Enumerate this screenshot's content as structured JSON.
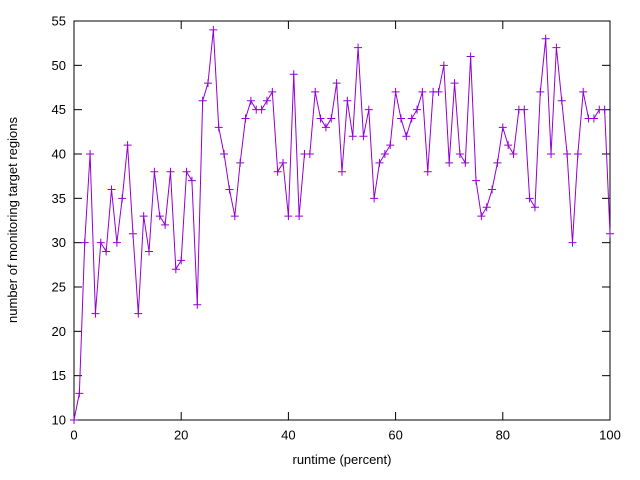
{
  "chart_data": {
    "type": "line",
    "title": "",
    "xlabel": "runtime (percent)",
    "ylabel": "number of monitoring target regions",
    "x_ticks": [
      0,
      20,
      40,
      60,
      80,
      100
    ],
    "y_ticks": [
      10,
      15,
      20,
      25,
      30,
      35,
      40,
      45,
      50,
      55
    ],
    "xlim": [
      0,
      100
    ],
    "ylim": [
      10,
      55
    ],
    "x_start": 0,
    "x_step": 1,
    "grid": "off",
    "legend": "none",
    "marker": "plus",
    "line_color": "#9400d3",
    "border_color": "#000000",
    "series": [
      {
        "name": "monitoring target regions",
        "values": [
          10,
          13,
          30,
          40,
          22,
          30,
          29,
          36,
          30,
          35,
          41,
          31,
          22,
          33,
          29,
          38,
          33,
          32,
          38,
          27,
          28,
          38,
          37,
          23,
          46,
          48,
          54,
          43,
          40,
          36,
          33,
          39,
          44,
          46,
          45,
          45,
          46,
          47,
          38,
          39,
          33,
          49,
          33,
          40,
          40,
          47,
          44,
          43,
          44,
          48,
          38,
          46,
          42,
          52,
          42,
          45,
          35,
          39,
          40,
          41,
          47,
          44,
          42,
          44,
          45,
          47,
          38,
          47,
          47,
          50,
          39,
          48,
          40,
          39,
          51,
          37,
          33,
          34,
          36,
          39,
          43,
          41,
          40,
          45,
          45,
          35,
          34,
          47,
          53,
          40,
          52,
          46,
          40,
          30,
          40,
          47,
          44,
          44,
          45,
          45,
          31
        ]
      }
    ]
  }
}
